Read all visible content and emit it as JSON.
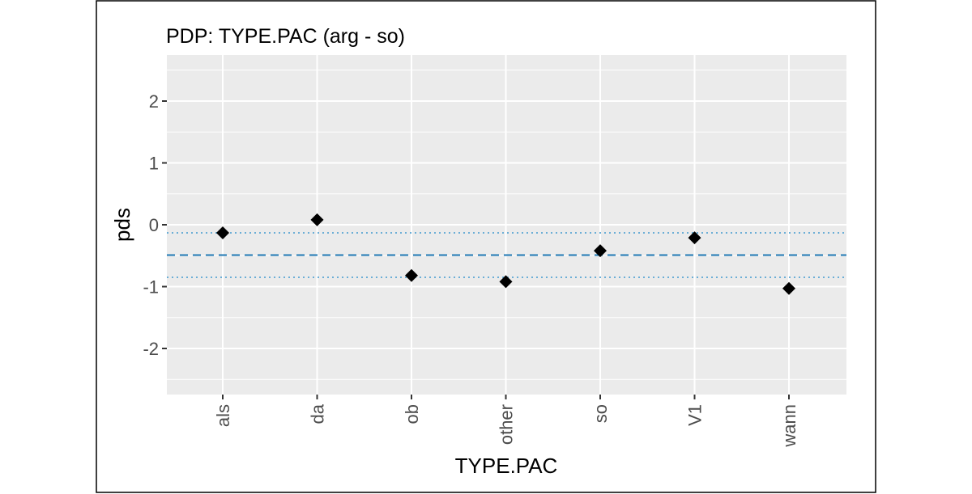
{
  "chart_data": {
    "type": "scatter",
    "title": "PDP: TYPE.PAC (arg - so)",
    "xlabel": "TYPE.PAC",
    "ylabel": "pds",
    "categories": [
      "als",
      "da",
      "ob",
      "other",
      "so",
      "V1",
      "wann"
    ],
    "values": [
      -0.13,
      0.08,
      -0.82,
      -0.92,
      -0.42,
      -0.21,
      -1.03
    ],
    "ylim": [
      -2.7,
      2.7
    ],
    "yticks": [
      "2",
      "1",
      "0",
      "-1",
      "-2"
    ],
    "ytick_values": [
      2,
      1,
      0,
      -1,
      -2
    ],
    "reference_lines": {
      "mean": -0.49,
      "upper": -0.13,
      "lower": -0.85
    },
    "grid": true,
    "colors": {
      "panel": "#ebebeb",
      "grid": "#ffffff",
      "point": "#000000",
      "mean_line": "#1f78b4",
      "bound_line": "#6baed6"
    }
  }
}
